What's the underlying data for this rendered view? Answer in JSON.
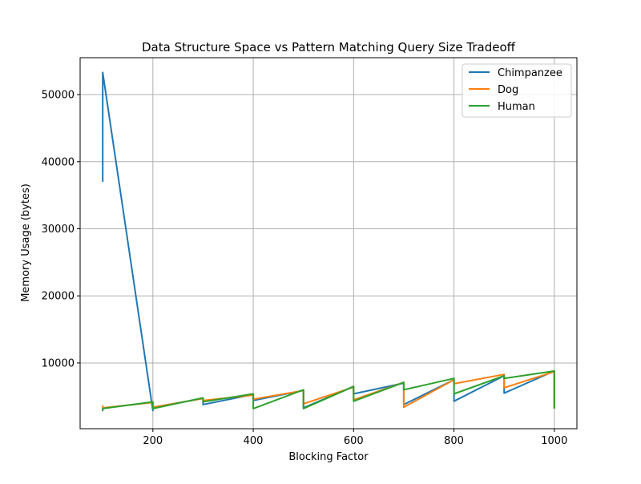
{
  "chart_data": {
    "type": "line",
    "title": "Data Structure Space vs Pattern Matching Query Size Tradeoff",
    "xlabel": "Blocking Factor",
    "ylabel": "Memory Usage (bytes)",
    "xlim": [
      55,
      1045
    ],
    "ylim": [
      200,
      55500
    ],
    "xticks": [
      200,
      400,
      600,
      800,
      1000
    ],
    "yticks": [
      10000,
      20000,
      30000,
      40000,
      50000
    ],
    "xtick_labels": [
      "200",
      "400",
      "600",
      "800",
      "1000"
    ],
    "ytick_labels": [
      "10000",
      "20000",
      "30000",
      "40000",
      "50000"
    ],
    "grid": true,
    "legend_position": "top-right",
    "series": [
      {
        "name": "Chimpanzee",
        "color": "#1f77b4",
        "points": [
          [
            100,
            37000
          ],
          [
            100,
            53300
          ],
          [
            200,
            2900
          ],
          [
            200,
            3400
          ],
          [
            300,
            4700
          ],
          [
            300,
            3800
          ],
          [
            400,
            5300
          ],
          [
            400,
            4400
          ],
          [
            500,
            5900
          ],
          [
            500,
            3300
          ],
          [
            600,
            6500
          ],
          [
            600,
            5400
          ],
          [
            700,
            7000
          ],
          [
            700,
            3800
          ],
          [
            800,
            7500
          ],
          [
            800,
            4300
          ],
          [
            900,
            8100
          ],
          [
            900,
            5500
          ],
          [
            1000,
            8800
          ],
          [
            1000,
            3300
          ]
        ]
      },
      {
        "name": "Dog",
        "color": "#ff7f0e",
        "points": [
          [
            100,
            3700
          ],
          [
            100,
            3300
          ],
          [
            200,
            4100
          ],
          [
            200,
            3400
          ],
          [
            300,
            4700
          ],
          [
            300,
            4400
          ],
          [
            400,
            5200
          ],
          [
            400,
            4600
          ],
          [
            500,
            5900
          ],
          [
            500,
            3900
          ],
          [
            600,
            6400
          ],
          [
            600,
            4500
          ],
          [
            700,
            7100
          ],
          [
            700,
            3400
          ],
          [
            800,
            7500
          ],
          [
            800,
            6900
          ],
          [
            900,
            8300
          ],
          [
            900,
            6300
          ],
          [
            1000,
            8700
          ],
          [
            1000,
            3200
          ]
        ]
      },
      {
        "name": "Human",
        "color": "#2ca02c",
        "points": [
          [
            100,
            2800
          ],
          [
            100,
            3200
          ],
          [
            200,
            4200
          ],
          [
            200,
            3200
          ],
          [
            300,
            4800
          ],
          [
            300,
            4200
          ],
          [
            400,
            5400
          ],
          [
            400,
            3200
          ],
          [
            500,
            6000
          ],
          [
            500,
            3200
          ],
          [
            600,
            6500
          ],
          [
            600,
            4300
          ],
          [
            700,
            7100
          ],
          [
            700,
            6000
          ],
          [
            800,
            7700
          ],
          [
            800,
            5400
          ],
          [
            900,
            8100
          ],
          [
            900,
            7700
          ],
          [
            1000,
            8800
          ],
          [
            1000,
            3200
          ]
        ]
      }
    ]
  }
}
